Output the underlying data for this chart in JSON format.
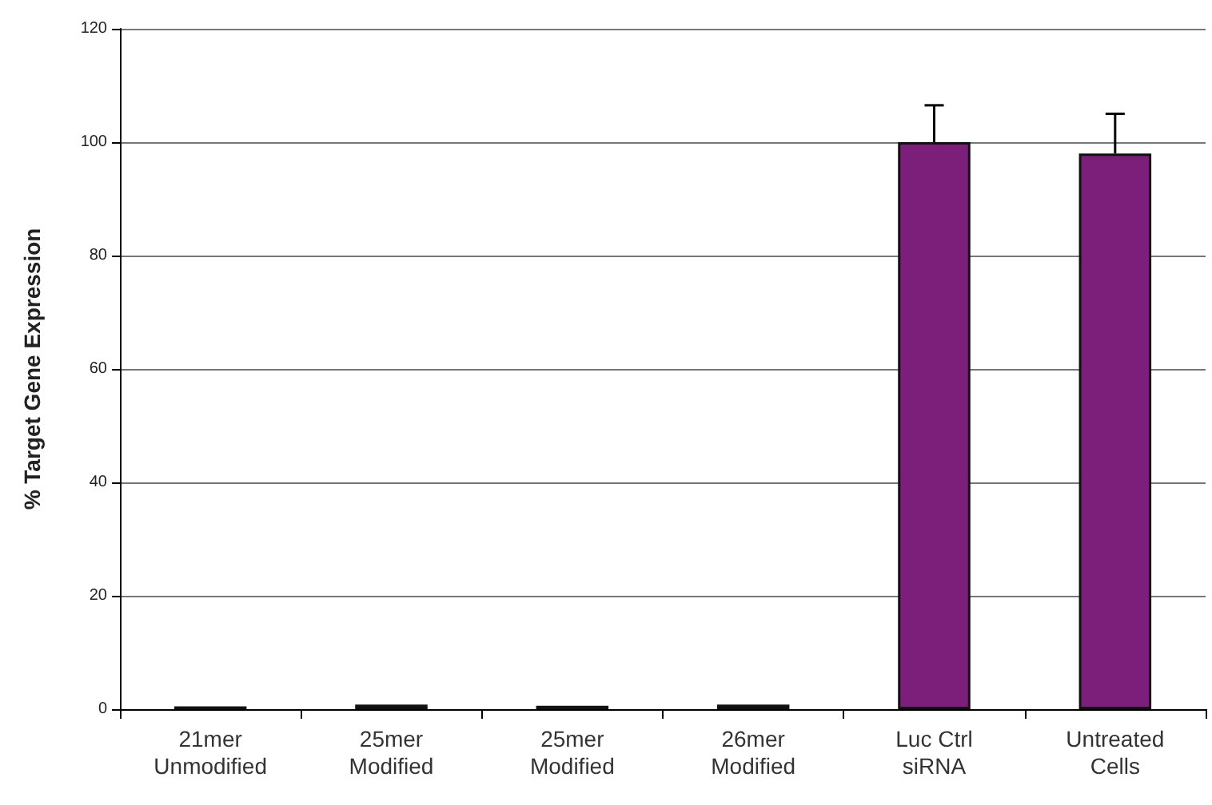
{
  "chart_data": {
    "type": "bar",
    "ylabel": "% Target Gene Expression",
    "categories": [
      "21mer\nUnmodified",
      "25mer\nModified",
      "25mer\nModified",
      "26mer\nModified",
      "Luc Ctrl\nsiRNA",
      "Untreated\nCells"
    ],
    "values": [
      0.5,
      0.8,
      0.6,
      0.8,
      100,
      98
    ],
    "errors": [
      null,
      null,
      null,
      null,
      6.5,
      7
    ],
    "color": "#7b1f7b",
    "ylim": [
      0,
      120
    ],
    "yticks": [
      0,
      20,
      40,
      60,
      80,
      100,
      120
    ],
    "grid": "y"
  }
}
